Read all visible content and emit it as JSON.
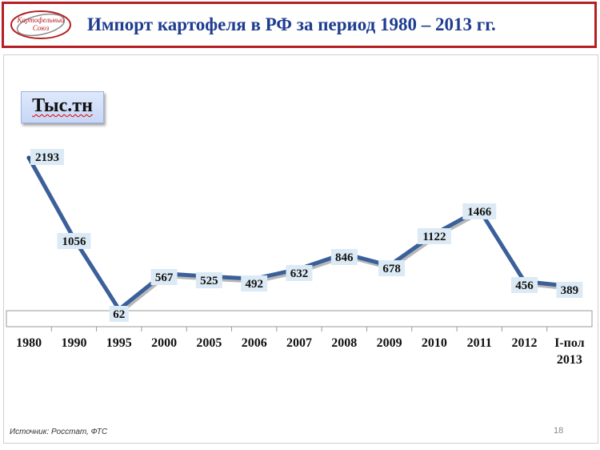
{
  "header": {
    "title": "Импорт картофеля в РФ за период 1980 – 2013 гг.",
    "logo_text": "Картофельный Союз"
  },
  "unit_label": "Тыс.тн",
  "footer": {
    "source": "Источник: Росстат, ФТС",
    "page_number": "18"
  },
  "colors": {
    "accent": "#b51f24",
    "title": "#1f3d8f",
    "line": "#3a5f9a",
    "label_bg": "#dbeaf5"
  },
  "chart_data": {
    "type": "line",
    "title": "",
    "xlabel": "",
    "ylabel": "Тыс.тн",
    "categories": [
      "1980",
      "1990",
      "1995",
      "2000",
      "2005",
      "2006",
      "2007",
      "2008",
      "2009",
      "2010",
      "2011",
      "2012",
      "I-пол 2013"
    ],
    "values": [
      2193,
      1056,
      62,
      567,
      525,
      492,
      632,
      846,
      678,
      1122,
      1466,
      456,
      389
    ],
    "ylim": [
      0,
      2400
    ],
    "grid": false,
    "legend": "none"
  }
}
